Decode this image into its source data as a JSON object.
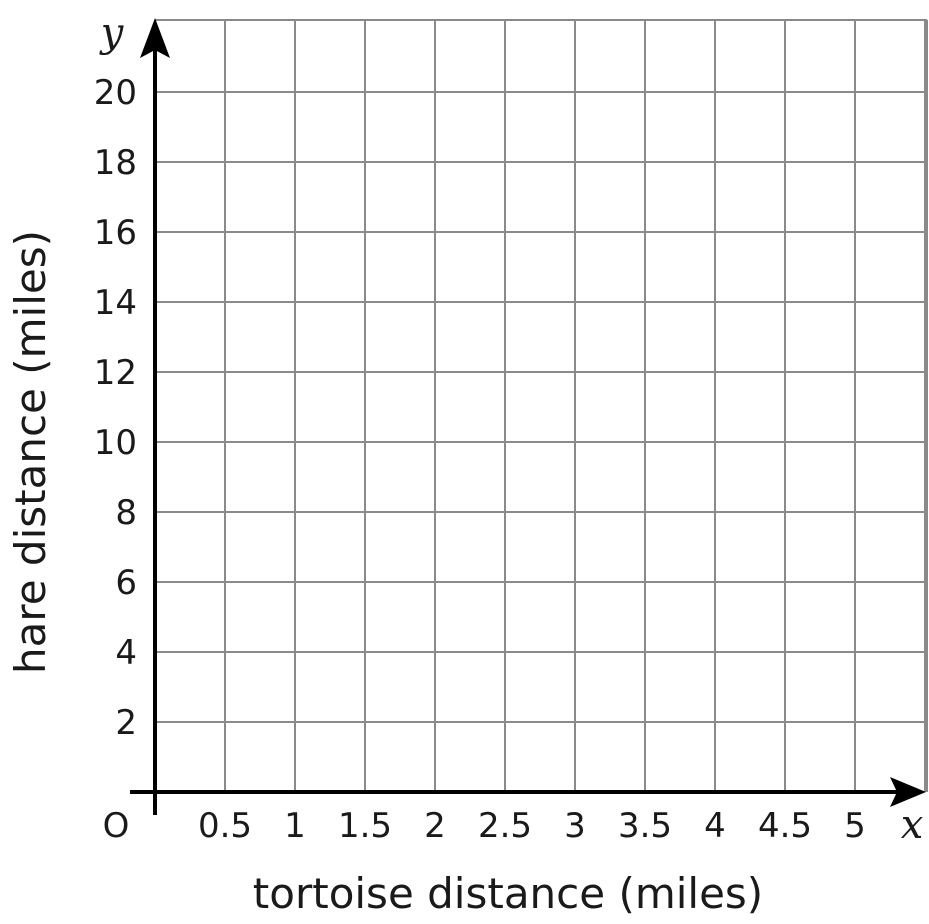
{
  "chart_data": {
    "type": "scatter",
    "x": [],
    "y": [],
    "xlabel": "tortoise distance (miles)",
    "ylabel": "hare distance (miles)",
    "x_var": "x",
    "y_var": "y",
    "origin_label": "O",
    "xlim": [
      0,
      5.5
    ],
    "ylim": [
      0,
      21
    ],
    "grid": true,
    "x_ticks": [
      {
        "value": 0.5,
        "label": "0.5"
      },
      {
        "value": 1,
        "label": "1"
      },
      {
        "value": 1.5,
        "label": "1.5"
      },
      {
        "value": 2,
        "label": "2"
      },
      {
        "value": 2.5,
        "label": "2.5"
      },
      {
        "value": 3,
        "label": "3"
      },
      {
        "value": 3.5,
        "label": "3.5"
      },
      {
        "value": 4,
        "label": "4"
      },
      {
        "value": 4.5,
        "label": "4.5"
      },
      {
        "value": 5,
        "label": "5"
      }
    ],
    "y_ticks": [
      {
        "value": 2,
        "label": "2"
      },
      {
        "value": 4,
        "label": "4"
      },
      {
        "value": 6,
        "label": "6"
      },
      {
        "value": 8,
        "label": "8"
      },
      {
        "value": 10,
        "label": "10"
      },
      {
        "value": 12,
        "label": "12"
      },
      {
        "value": 14,
        "label": "14"
      },
      {
        "value": 16,
        "label": "16"
      },
      {
        "value": 18,
        "label": "18"
      },
      {
        "value": 20,
        "label": "20"
      }
    ]
  }
}
